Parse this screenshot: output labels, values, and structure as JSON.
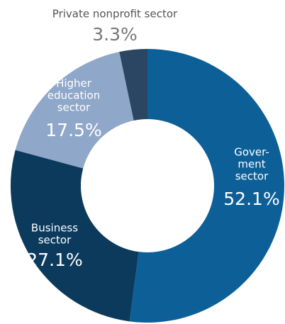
{
  "chart_data": {
    "type": "donut",
    "categories": [
      [
        "Gover-",
        "ment",
        "sector"
      ],
      [
        "Business",
        "sector"
      ],
      [
        "Higher",
        "education",
        "sector"
      ],
      [
        "Private nonprofit sector"
      ]
    ],
    "values": [
      52.1,
      27.1,
      17.5,
      3.3
    ],
    "value_labels": [
      "52.1%",
      "27.1%",
      "17.5%",
      "3.3%"
    ],
    "colors": [
      "#0d5f97",
      "#0b3a5c",
      "#8fa7c8",
      "#2b4662"
    ]
  }
}
